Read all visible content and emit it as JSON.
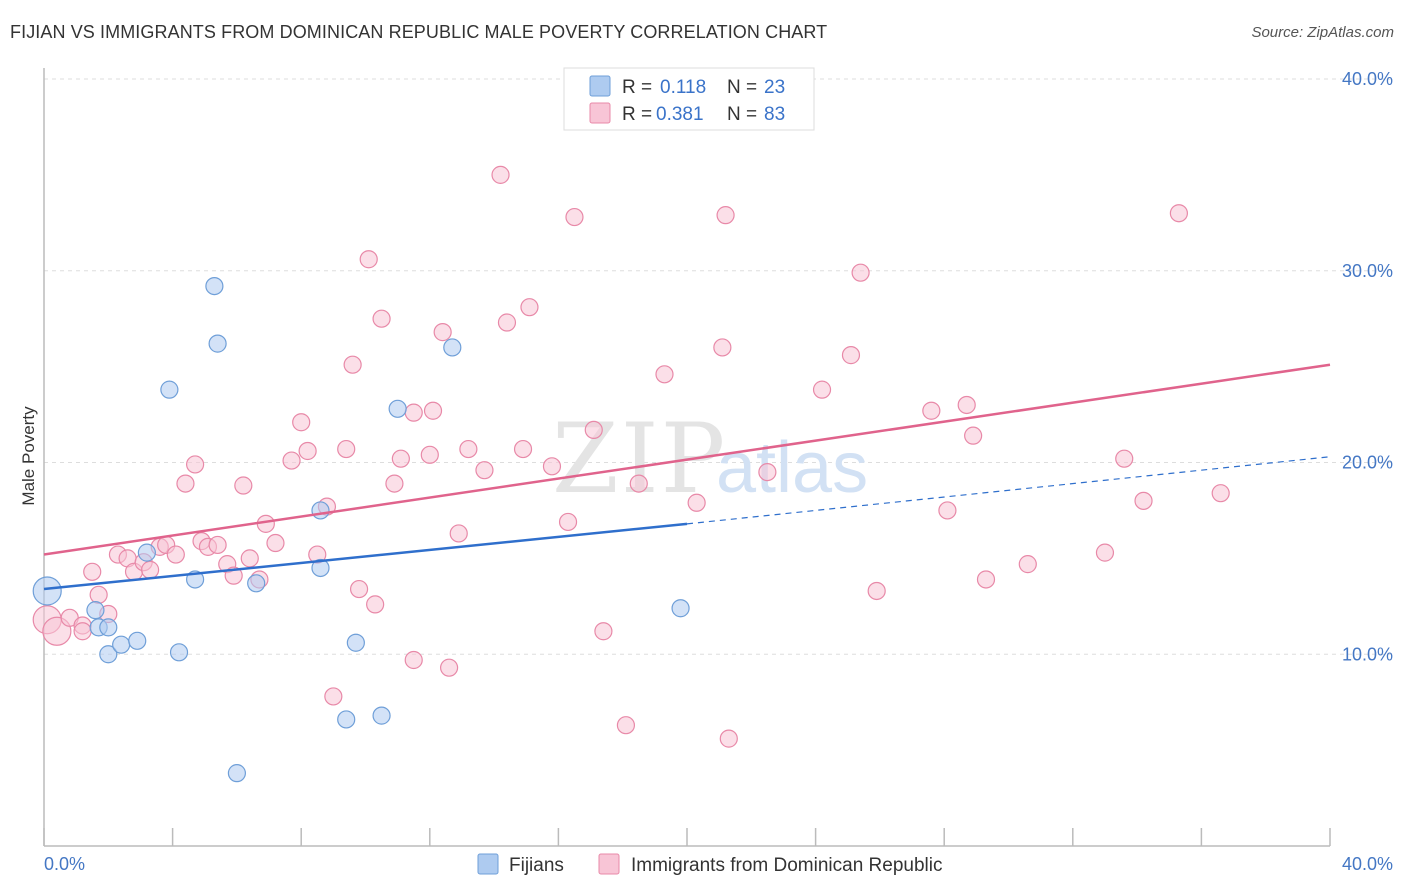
{
  "header": {
    "title": "FIJIAN VS IMMIGRANTS FROM DOMINICAN REPUBLIC MALE POVERTY CORRELATION CHART",
    "source": "Source: ZipAtlas.com"
  },
  "watermark": {
    "zip": "ZIP",
    "atlas": "atlas"
  },
  "legend": {
    "r_label": "R =",
    "n_label": "N =",
    "rows": [
      {
        "r": "0.118",
        "n": "23",
        "color": "#aecbf0",
        "stroke": "#6f9fd8"
      },
      {
        "r": "0.381",
        "n": "83",
        "color": "#f8c5d6",
        "stroke": "#e889a8"
      }
    ]
  },
  "bottom_legend": [
    {
      "label": "Fijians",
      "color": "#aecbf0",
      "stroke": "#6f9fd8"
    },
    {
      "label": "Immigrants from Dominican Republic",
      "color": "#f8c5d6",
      "stroke": "#e889a8"
    }
  ],
  "chart_data": {
    "type": "scatter",
    "title": "FIJIAN VS IMMIGRANTS FROM DOMINICAN REPUBLIC MALE POVERTY CORRELATION CHART",
    "xlabel": "",
    "ylabel": "Male Poverty",
    "xlim": [
      0,
      40
    ],
    "ylim": [
      0,
      40
    ],
    "x_tick_labels": [
      "0.0%",
      "40.0%"
    ],
    "y_ticks": [
      10,
      20,
      30,
      40
    ],
    "y_tick_labels": [
      "10.0%",
      "20.0%",
      "30.0%",
      "40.0%"
    ],
    "grid": "horizontal dashed",
    "series": [
      {
        "name": "Fijians",
        "color": "#6f9fd8",
        "fill": "#aecbf0",
        "trend": {
          "x0": 0,
          "y0": 13.4,
          "x1": 20,
          "y1": 16.8,
          "dash_to_x": 40,
          "dash_to_y": 20.3,
          "color": "#2f6fcc"
        },
        "points": [
          [
            0.1,
            13.3
          ],
          [
            1.6,
            12.3
          ],
          [
            1.7,
            11.4
          ],
          [
            2.0,
            11.4
          ],
          [
            2.0,
            10.0
          ],
          [
            2.4,
            10.5
          ],
          [
            2.9,
            10.7
          ],
          [
            3.2,
            15.3
          ],
          [
            3.9,
            23.8
          ],
          [
            4.7,
            13.9
          ],
          [
            4.2,
            10.1
          ],
          [
            5.3,
            29.2
          ],
          [
            5.4,
            26.2
          ],
          [
            6.0,
            3.8
          ],
          [
            6.6,
            13.7
          ],
          [
            8.6,
            17.5
          ],
          [
            8.6,
            14.5
          ],
          [
            9.4,
            6.6
          ],
          [
            9.7,
            10.6
          ],
          [
            10.5,
            6.8
          ],
          [
            11.0,
            22.8
          ],
          [
            12.7,
            26.0
          ],
          [
            19.8,
            12.4
          ]
        ]
      },
      {
        "name": "Immigrants from Dominican Republic",
        "color": "#e889a8",
        "fill": "#f8c5d6",
        "trend": {
          "x0": 0,
          "y0": 15.2,
          "x1": 40,
          "y1": 25.1,
          "color": "#e0638c"
        },
        "points": [
          [
            0.1,
            11.8
          ],
          [
            0.4,
            11.2
          ],
          [
            0.8,
            11.9
          ],
          [
            1.2,
            11.5
          ],
          [
            1.2,
            11.2
          ],
          [
            1.5,
            14.3
          ],
          [
            1.7,
            13.1
          ],
          [
            2.0,
            12.1
          ],
          [
            2.3,
            15.2
          ],
          [
            2.6,
            15.0
          ],
          [
            2.8,
            14.3
          ],
          [
            3.1,
            14.8
          ],
          [
            3.3,
            14.4
          ],
          [
            3.6,
            15.6
          ],
          [
            3.8,
            15.7
          ],
          [
            4.1,
            15.2
          ],
          [
            4.4,
            18.9
          ],
          [
            4.7,
            19.9
          ],
          [
            4.9,
            15.9
          ],
          [
            5.1,
            15.6
          ],
          [
            5.4,
            15.7
          ],
          [
            5.7,
            14.7
          ],
          [
            5.9,
            14.1
          ],
          [
            6.2,
            18.8
          ],
          [
            6.4,
            15.0
          ],
          [
            6.7,
            13.9
          ],
          [
            6.9,
            16.8
          ],
          [
            7.2,
            15.8
          ],
          [
            7.7,
            20.1
          ],
          [
            8.0,
            22.1
          ],
          [
            8.2,
            20.6
          ],
          [
            8.5,
            15.2
          ],
          [
            8.8,
            17.7
          ],
          [
            9.0,
            7.8
          ],
          [
            9.4,
            20.7
          ],
          [
            9.6,
            25.1
          ],
          [
            9.8,
            13.4
          ],
          [
            10.1,
            30.6
          ],
          [
            10.3,
            12.6
          ],
          [
            10.5,
            27.5
          ],
          [
            10.9,
            18.9
          ],
          [
            11.1,
            20.2
          ],
          [
            11.5,
            22.6
          ],
          [
            11.5,
            9.7
          ],
          [
            12.0,
            20.4
          ],
          [
            12.1,
            22.7
          ],
          [
            12.4,
            26.8
          ],
          [
            12.6,
            9.3
          ],
          [
            12.9,
            16.3
          ],
          [
            13.2,
            20.7
          ],
          [
            13.7,
            19.6
          ],
          [
            14.2,
            35.0
          ],
          [
            14.4,
            27.3
          ],
          [
            14.9,
            20.7
          ],
          [
            15.1,
            28.1
          ],
          [
            15.8,
            19.8
          ],
          [
            16.3,
            16.9
          ],
          [
            16.5,
            32.8
          ],
          [
            17.1,
            21.7
          ],
          [
            17.4,
            11.2
          ],
          [
            18.1,
            6.3
          ],
          [
            18.5,
            18.9
          ],
          [
            19.3,
            24.6
          ],
          [
            20.3,
            17.9
          ],
          [
            21.1,
            26.0
          ],
          [
            21.2,
            32.9
          ],
          [
            21.3,
            5.6
          ],
          [
            22.5,
            19.5
          ],
          [
            24.2,
            23.8
          ],
          [
            25.1,
            25.6
          ],
          [
            25.4,
            29.9
          ],
          [
            25.9,
            13.3
          ],
          [
            27.6,
            22.7
          ],
          [
            28.1,
            17.5
          ],
          [
            28.7,
            23.0
          ],
          [
            28.9,
            21.4
          ],
          [
            29.3,
            13.9
          ],
          [
            30.6,
            14.7
          ],
          [
            33.0,
            15.3
          ],
          [
            33.6,
            20.2
          ],
          [
            34.2,
            18.0
          ],
          [
            35.3,
            33.0
          ],
          [
            36.6,
            18.4
          ]
        ]
      }
    ]
  }
}
